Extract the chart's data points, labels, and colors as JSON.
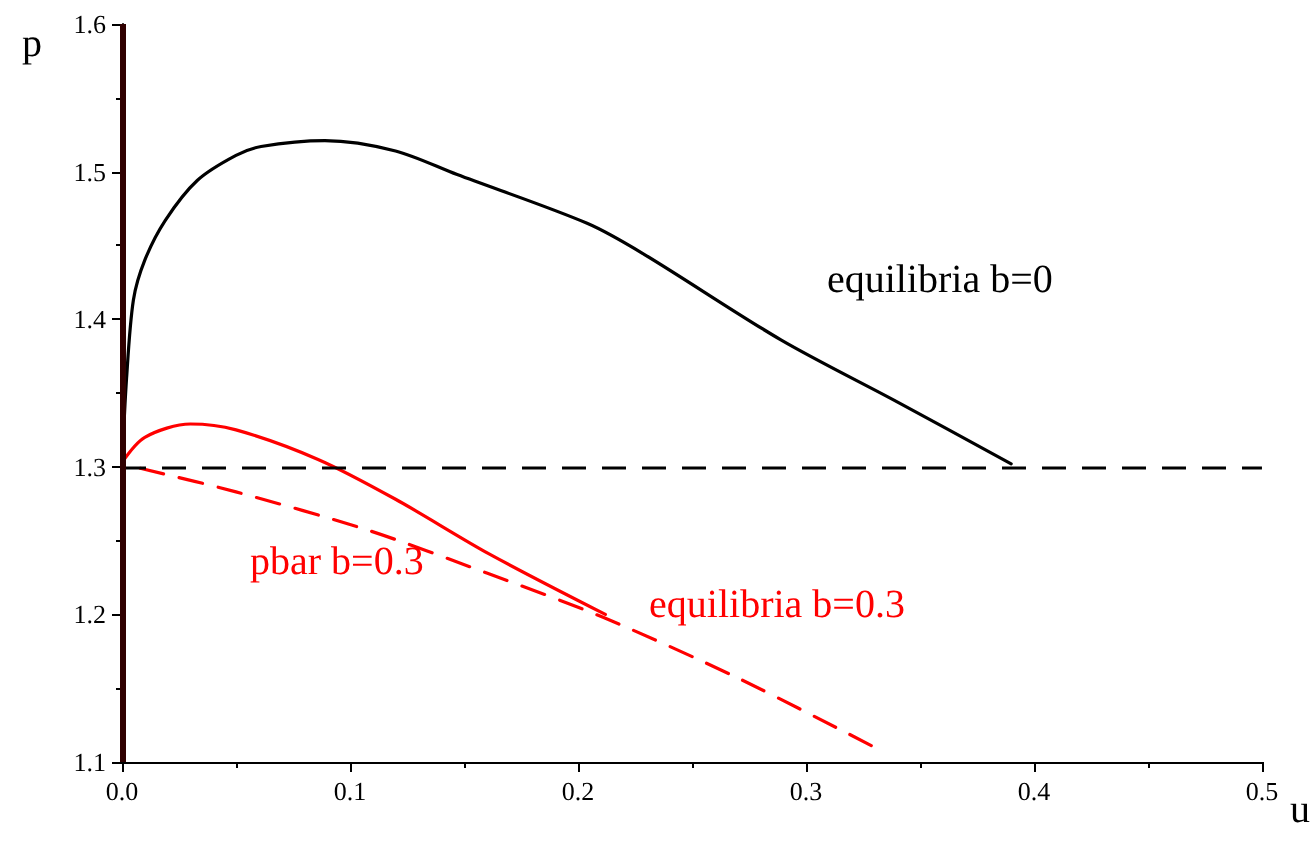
{
  "chart_data": {
    "type": "line",
    "xlabel": "u",
    "ylabel": "p",
    "xlim": [
      0,
      0.5
    ],
    "ylim": [
      1.1,
      1.6
    ],
    "xticks": [
      {
        "value": 0,
        "label": "0.0"
      },
      0.1,
      0.2,
      0.3,
      0.4,
      0.5
    ],
    "yticks": [
      1.1,
      1.2,
      1.3,
      1.4,
      1.5,
      1.6
    ],
    "grid": false,
    "legend": false,
    "marker": "none",
    "series": [
      {
        "name": "equilibria b=0",
        "color": "#000000",
        "line_style": "solid",
        "x": [
          0,
          0.002,
          0.005,
          0.01,
          0.019,
          0.033,
          0.05,
          0.061,
          0.089,
          0.12,
          0.147,
          0.204,
          0.229,
          0.289,
          0.34,
          0.39
        ],
        "values": [
          1.3,
          1.36,
          1.413,
          1.44,
          1.467,
          1.494,
          1.511,
          1.517,
          1.521,
          1.514,
          1.498,
          1.465,
          1.444,
          1.386,
          1.344,
          1.302
        ]
      },
      {
        "name": "pbar b=0.3",
        "color": "#ff0000",
        "line_style": "solid",
        "x": [
          0,
          0.01,
          0.03,
          0.05,
          0.086,
          0.12,
          0.161,
          0.212
        ],
        "values": [
          1.303,
          1.32,
          1.329,
          1.325,
          1.305,
          1.278,
          1.241,
          1.2
        ]
      },
      {
        "name": "equilibria b=0.3",
        "color": "#ff0000",
        "line_style": "dashed",
        "x": [
          0.008,
          0.05,
          0.108,
          0.16,
          0.211,
          0.27,
          0.33
        ],
        "values": [
          1.299,
          1.283,
          1.257,
          1.228,
          1.198,
          1.157,
          1.11
        ]
      }
    ],
    "ref_lines": [
      {
        "axis": "y",
        "value": 1.3,
        "color": "#000000",
        "line_style": "dashed"
      },
      {
        "axis": "x",
        "value": 0,
        "color": "#300000",
        "line_style": "solid"
      }
    ]
  }
}
